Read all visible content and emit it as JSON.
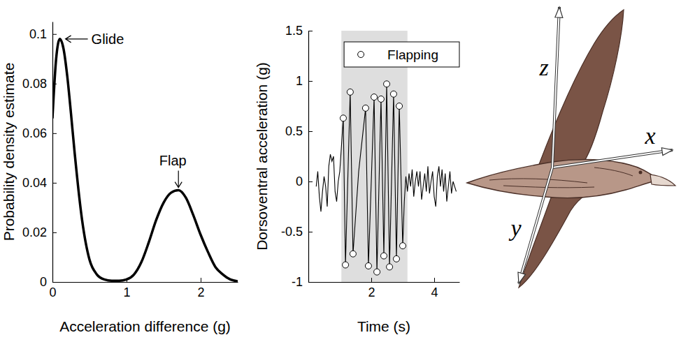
{
  "chart_data": [
    {
      "type": "line",
      "xlabel": "Acceleration difference (g)",
      "ylabel": "Probability density estimate",
      "x": [
        0,
        0.05,
        0.1,
        0.15,
        0.2,
        0.25,
        0.3,
        0.4,
        0.5,
        0.6,
        0.7,
        0.8,
        0.9,
        1.0,
        1.1,
        1.2,
        1.3,
        1.4,
        1.5,
        1.6,
        1.7,
        1.8,
        1.9,
        2.0,
        2.1,
        2.2,
        2.3,
        2.4,
        2.5
      ],
      "series": [
        {
          "color": "#000000",
          "values": [
            0.066,
            0.09,
            0.098,
            0.094,
            0.083,
            0.068,
            0.052,
            0.025,
            0.009,
            0.003,
            0.001,
            0.0005,
            0.0005,
            0.001,
            0.003,
            0.008,
            0.016,
            0.025,
            0.032,
            0.036,
            0.037,
            0.034,
            0.027,
            0.019,
            0.012,
            0.006,
            0.003,
            0.001,
            0.0003
          ]
        }
      ],
      "xlim": [
        0,
        2.5
      ],
      "xticks": [
        0,
        1,
        2
      ],
      "ylim": [
        0,
        0.105
      ],
      "yticks": [
        0,
        0.02,
        0.04,
        0.06,
        0.08,
        0.1
      ],
      "annotations": [
        {
          "text": "Glide",
          "x": 0.1,
          "y": 0.098
        },
        {
          "text": "Flap",
          "x": 1.7,
          "y": 0.037
        }
      ]
    },
    {
      "type": "line",
      "xlabel": "Time (s)",
      "ylabel": "Dorsoventral acceleration (g)",
      "xlim": [
        0,
        4.8
      ],
      "xticks": [
        2,
        4
      ],
      "ylim": [
        -1,
        1.5
      ],
      "yticks": [
        -1,
        -0.5,
        0,
        0.5,
        1,
        1.5
      ],
      "shaded_region": [
        1.05,
        3.15
      ],
      "legend": "upper right",
      "series": [
        {
          "type": "line",
          "color": "#000000",
          "x": [
            0.25,
            0.3,
            0.35,
            0.4,
            0.45,
            0.5,
            0.55,
            0.6,
            0.65,
            0.7,
            0.75,
            0.8,
            0.85,
            0.9,
            0.95,
            1.0,
            1.11,
            1.18,
            1.33,
            1.42,
            1.6,
            1.82,
            1.91,
            2.09,
            2.18,
            2.31,
            2.4,
            2.49,
            2.58,
            2.71,
            2.8,
            2.89,
            3.0,
            3.05,
            3.1,
            3.15,
            3.2,
            3.25,
            3.3,
            3.35,
            3.4,
            3.45,
            3.5,
            3.55,
            3.6,
            3.65,
            3.7,
            3.75,
            3.8,
            3.85,
            3.9,
            3.95,
            4.0,
            4.05,
            4.1,
            4.15,
            4.2,
            4.25,
            4.3,
            4.35,
            4.4,
            4.45,
            4.5,
            4.55,
            4.6,
            4.65,
            4.7
          ],
          "values": [
            -0.05,
            0.1,
            -0.15,
            -0.3,
            -0.1,
            0.05,
            -0.05,
            -0.25,
            0.15,
            0.27,
            0.2,
            0.25,
            -0.1,
            -0.2,
            0.0,
            0.1,
            0.63,
            -0.83,
            0.89,
            -0.72,
            0.1,
            0.73,
            -0.84,
            0.84,
            -0.9,
            0.82,
            -0.74,
            0.97,
            -0.85,
            0.87,
            -0.77,
            0.75,
            -0.64,
            -0.2,
            0.05,
            -0.1,
            0.08,
            -0.05,
            0.12,
            -0.15,
            0.0,
            0.1,
            -0.05,
            0.1,
            -0.18,
            -0.05,
            0.08,
            -0.1,
            0.15,
            -0.12,
            0.0,
            0.1,
            -0.15,
            -0.25,
            0.05,
            0.15,
            -0.05,
            0.12,
            -0.1,
            0.08,
            -0.2,
            -0.05,
            0.1,
            -0.12,
            0.0,
            -0.05,
            -0.1
          ]
        },
        {
          "type": "scatter",
          "name": "Flapping",
          "marker": "circle",
          "color": "#000000",
          "x": [
            1.11,
            1.18,
            1.33,
            1.42,
            1.82,
            1.91,
            2.09,
            2.18,
            2.31,
            2.4,
            2.49,
            2.58,
            2.71,
            2.8,
            2.89,
            3.0
          ],
          "values": [
            0.63,
            -0.83,
            0.89,
            -0.72,
            0.73,
            -0.84,
            0.84,
            -0.9,
            0.82,
            -0.74,
            0.97,
            -0.85,
            0.87,
            -0.77,
            0.75,
            -0.64
          ]
        }
      ]
    }
  ],
  "illustration": {
    "axis_labels": [
      "x",
      "y",
      "z"
    ]
  }
}
